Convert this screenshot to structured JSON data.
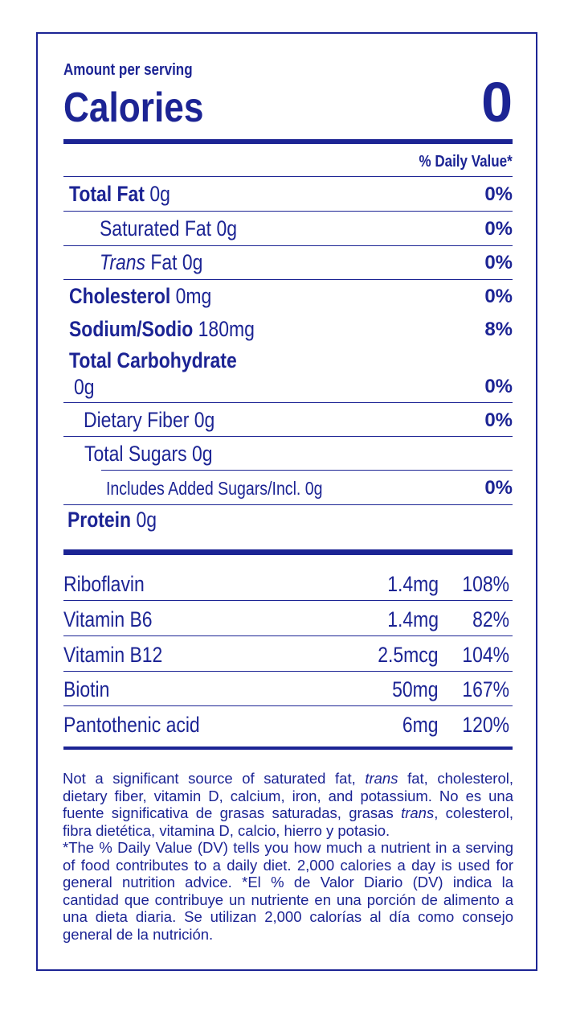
{
  "header": {
    "amount_per_serving": "Amount per serving",
    "calories_label": "Calories",
    "calories_value": "0",
    "daily_value_header": "% Daily Value*"
  },
  "nutrients": {
    "total_fat": {
      "name": "Total Fat",
      "amount": "0g",
      "dv": "0%"
    },
    "saturated_fat": {
      "name": "Saturated Fat",
      "amount": "0g",
      "dv": "0%"
    },
    "trans_fat": {
      "name_italic": "Trans",
      "name_rest": "Fat",
      "amount": "0g",
      "dv": "0%"
    },
    "cholesterol": {
      "name": "Cholesterol",
      "amount": "0mg",
      "dv": "0%"
    },
    "sodium": {
      "name": "Sodium/Sodio",
      "amount": "180mg",
      "dv": "8%"
    },
    "total_carbohydrate": {
      "name": "Total Carbohydrate",
      "amount": "0g",
      "dv": "0%"
    },
    "dietary_fiber": {
      "name": "Dietary Fiber",
      "amount": "0g",
      "dv": "0%"
    },
    "total_sugars": {
      "name": "Total Sugars",
      "amount": "0g"
    },
    "added_sugars": {
      "name": "Includes Added Sugars/Incl.",
      "amount": "0g",
      "dv": "0%"
    },
    "protein": {
      "name": "Protein",
      "amount": "0g"
    }
  },
  "vitamins": [
    {
      "name": "Riboflavin",
      "amount": "1.4mg",
      "dv": "108%"
    },
    {
      "name": "Vitamin B6",
      "amount": "1.4mg",
      "dv": "82%"
    },
    {
      "name": "Vitamin B12",
      "amount": "2.5mcg",
      "dv": "104%"
    },
    {
      "name": "Biotin",
      "amount": "50mg",
      "dv": "167%"
    },
    {
      "name": "Pantothenic acid",
      "amount": "6mg",
      "dv": "120%"
    }
  ],
  "footnote": {
    "p1_a": "Not a significant source of saturated fat, ",
    "p1_trans": "trans",
    "p1_b": " fat, cholesterol, dietary fiber, vitamin D, calcium, iron, and potassium. No es una fuente significativa de grasas saturadas, grasas ",
    "p1_trans_es": "trans",
    "p1_c": ", colesterol, fibra dietética, vitamina D, calcio, hierro y potasio.",
    "p2": "*The % Daily Value (DV) tells you how much a nutrient in a serving of food contributes to a daily diet. 2,000 calories a day is used for general nutrition advice. *El % de Valor Diario (DV) indica la cantidad que contribuye un nutriente en una porción de alimento a una dieta diaria. Se utilizan 2,000 calorías al día como consejo general de la nutrición."
  },
  "colors": {
    "ink": "#1c2494",
    "background": "#ffffff"
  }
}
